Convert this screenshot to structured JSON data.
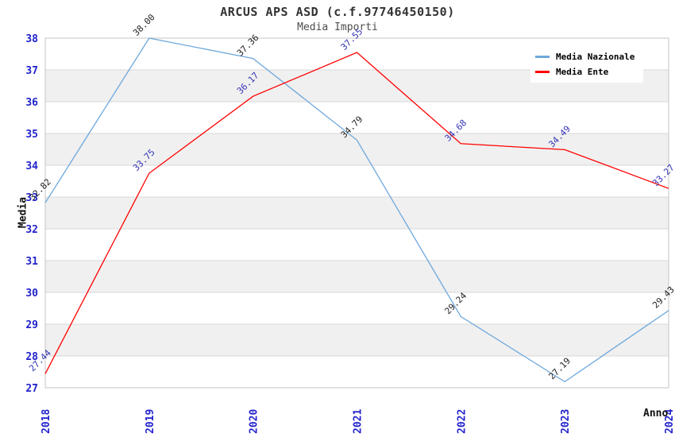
{
  "chart_data": {
    "type": "line",
    "title": "ARCUS APS ASD (c.f.97746450150)",
    "subtitle": "Media Importi",
    "xlabel": "Anno",
    "ylabel": "Media",
    "x": [
      "2018",
      "2019",
      "2020",
      "2021",
      "2022",
      "2023",
      "2024"
    ],
    "series": [
      {
        "name": "Media Nazionale",
        "color": "#6fa8dc",
        "label_color": "#222222",
        "values": [
          32.82,
          38.0,
          37.36,
          34.79,
          29.24,
          27.19,
          29.43
        ]
      },
      {
        "name": "Media Ente",
        "color": "#ff0000",
        "label_color": "#3333b4",
        "values": [
          27.44,
          33.75,
          36.17,
          37.55,
          34.68,
          34.49,
          33.27
        ]
      }
    ],
    "ylim": [
      27,
      38
    ],
    "yticks": [
      27,
      28,
      29,
      30,
      31,
      32,
      33,
      34,
      35,
      36,
      37,
      38
    ],
    "value_label_format": "2dp",
    "grid": "horizontal-bands",
    "legend_position": "top-right",
    "colors": {
      "tick_label": "#2222cc",
      "band": "#ffffff",
      "band_alt": "#f0f0f0",
      "gridline": "#d8d8d8",
      "border": "#c4c4c4",
      "title": "#333333",
      "subtitle": "#4d4d4d"
    }
  }
}
